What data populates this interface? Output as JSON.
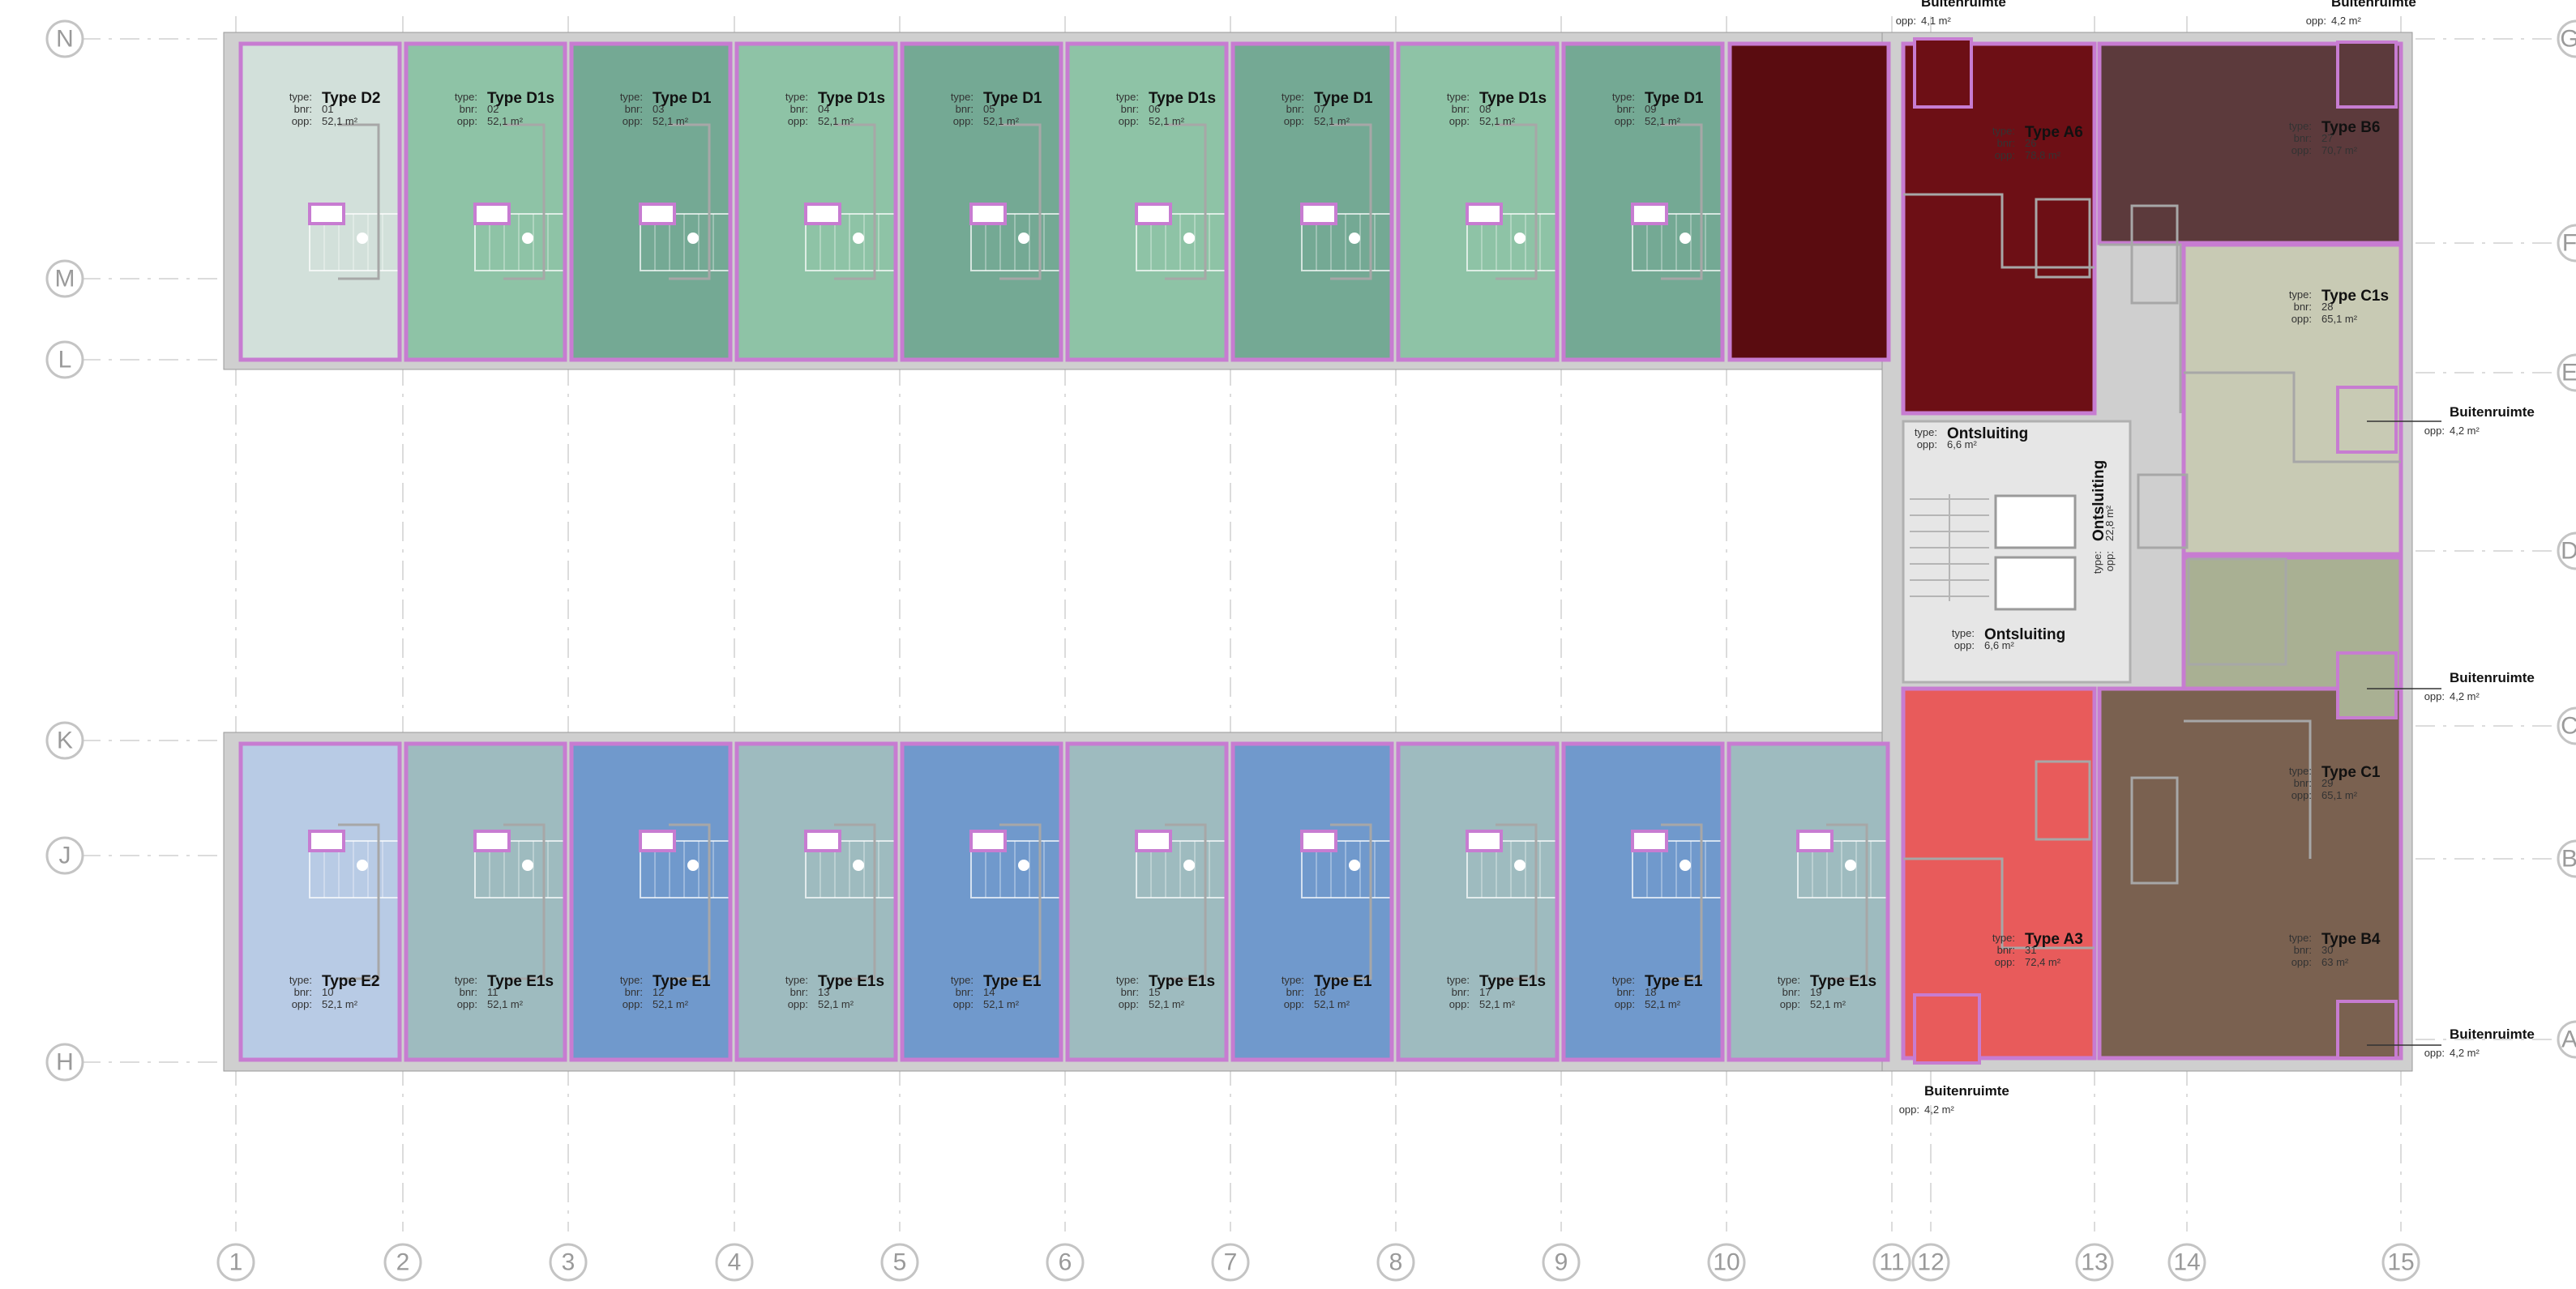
{
  "labels": {
    "type": "type:",
    "bnr": "bnr:",
    "opp": "opp:"
  },
  "grid": {
    "rows": [
      "N",
      "M",
      "L",
      "K",
      "J",
      "H"
    ],
    "rows_right": [
      "G",
      "F",
      "E",
      "D",
      "C",
      "B",
      "A"
    ],
    "columns": [
      "1",
      "2",
      "3",
      "4",
      "5",
      "6",
      "7",
      "8",
      "9",
      "10",
      "11",
      "12",
      "13",
      "14",
      "15"
    ]
  },
  "colors": {
    "D2": "#d2e0da",
    "D1s": "#8ec3a6",
    "D1": "#74a994",
    "E2": "#b8cbe5",
    "E1s": "#9ebbbf",
    "E1": "#7099cc",
    "A6": "#6d0f15",
    "B6": "#5c3a3c",
    "C1s": "#c8cab4",
    "C1": "#a9b093",
    "A3": "#e85b5b",
    "B4": "#7a6150",
    "core": "#e6e6e6",
    "border": "#c77cd1"
  },
  "units_top": [
    {
      "type": "Type D2",
      "bnr": "01",
      "opp": "52,1 m²",
      "color": "D2"
    },
    {
      "type": "Type D1s",
      "bnr": "02",
      "opp": "52,1 m²",
      "color": "D1s"
    },
    {
      "type": "Type D1",
      "bnr": "03",
      "opp": "52,1 m²",
      "color": "D1"
    },
    {
      "type": "Type D1s",
      "bnr": "04",
      "opp": "52,1 m²",
      "color": "D1s"
    },
    {
      "type": "Type D1",
      "bnr": "05",
      "opp": "52,1 m²",
      "color": "D1"
    },
    {
      "type": "Type D1s",
      "bnr": "06",
      "opp": "52,1 m²",
      "color": "D1s"
    },
    {
      "type": "Type D1",
      "bnr": "07",
      "opp": "52,1 m²",
      "color": "D1"
    },
    {
      "type": "Type D1s",
      "bnr": "08",
      "opp": "52,1 m²",
      "color": "D1s"
    },
    {
      "type": "Type D1",
      "bnr": "09",
      "opp": "52,1 m²",
      "color": "D1"
    }
  ],
  "units_bottom": [
    {
      "type": "Type E2",
      "bnr": "10",
      "opp": "52,1 m²",
      "color": "E2"
    },
    {
      "type": "Type E1s",
      "bnr": "11",
      "opp": "52,1 m²",
      "color": "E1s"
    },
    {
      "type": "Type E1",
      "bnr": "12",
      "opp": "52,1 m²",
      "color": "E1"
    },
    {
      "type": "Type E1s",
      "bnr": "13",
      "opp": "52,1 m²",
      "color": "E1s"
    },
    {
      "type": "Type E1",
      "bnr": "14",
      "opp": "52,1 m²",
      "color": "E1"
    },
    {
      "type": "Type E1s",
      "bnr": "15",
      "opp": "52,1 m²",
      "color": "E1s"
    },
    {
      "type": "Type E1",
      "bnr": "16",
      "opp": "52,1 m²",
      "color": "E1"
    },
    {
      "type": "Type E1s",
      "bnr": "17",
      "opp": "52,1 m²",
      "color": "E1s"
    },
    {
      "type": "Type E1",
      "bnr": "18",
      "opp": "52,1 m²",
      "color": "E1"
    },
    {
      "type": "Type E1s",
      "bnr": "19",
      "opp": "52,1 m²",
      "color": "E1s"
    }
  ],
  "units_east": {
    "a6": {
      "type": "Type A6",
      "bnr": "26",
      "opp": "78,8 m²"
    },
    "b6": {
      "type": "Type B6",
      "bnr": "27",
      "opp": "70,7 m²"
    },
    "c1s": {
      "type": "Type C1s",
      "bnr": "28",
      "opp": "65,1 m²"
    },
    "c1": {
      "type": "Type C1",
      "bnr": "29",
      "opp": "65,1 m²"
    },
    "a3": {
      "type": "Type A3",
      "bnr": "31",
      "opp": "72,4 m²"
    },
    "b4": {
      "type": "Type B4",
      "bnr": "30",
      "opp": "63 m²"
    }
  },
  "circulation": {
    "c1": {
      "type": "Ontsluiting",
      "opp": "6,6 m²"
    },
    "c2": {
      "type": "Ontsluiting",
      "opp": "22,8 m²"
    },
    "c3": {
      "type": "Ontsluiting",
      "opp": "6,6 m²"
    }
  },
  "outdoor": {
    "o1": {
      "name": "Buitenruimte",
      "opp": "4,1 m²"
    },
    "o2": {
      "name": "Buitenruimte",
      "opp": "4,2 m²"
    },
    "o3": {
      "name": "Buitenruimte",
      "opp": "4,2 m²"
    },
    "o4": {
      "name": "Buitenruimte",
      "opp": "4,2 m²"
    },
    "o5": {
      "name": "Buitenruimte",
      "opp": "4,2 m²"
    },
    "o6": {
      "name": "Buitenruimte",
      "opp": "4,2 m²"
    }
  }
}
